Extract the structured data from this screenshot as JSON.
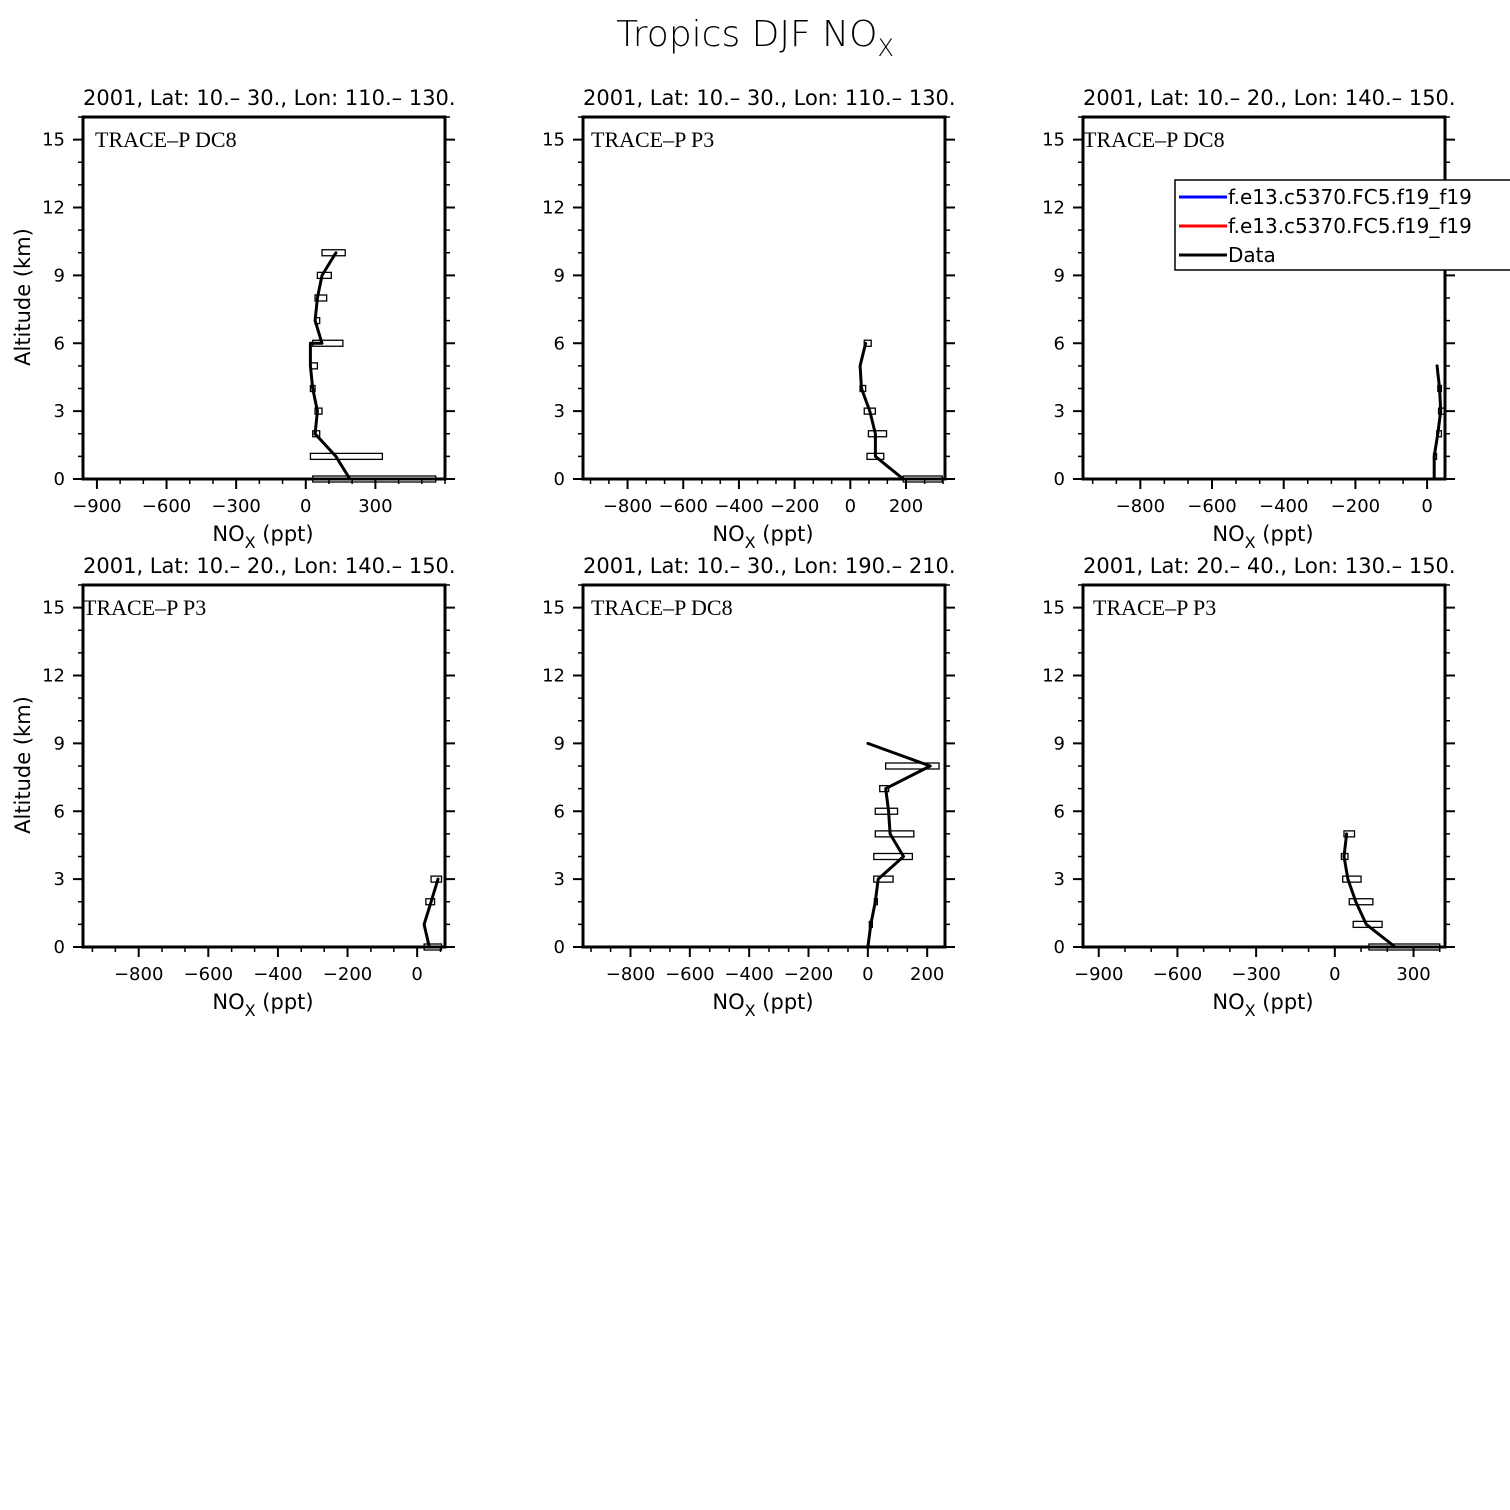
{
  "figure": {
    "title": "Tropics DJF NO",
    "title_sub": "X"
  },
  "legend": {
    "entries": [
      {
        "label": "f.e13.c5370.FC5.f19_f19",
        "color": "#0000ff"
      },
      {
        "label": "f.e13.c5370.FC5.f19_f19",
        "color": "#ff0000"
      },
      {
        "label": "Data",
        "color": "#000000"
      }
    ]
  },
  "chart_data": [
    {
      "type": "line",
      "title": "2001, Lat: 10.– 30., Lon: 110.– 130.",
      "campaign": "TRACE–P DC8",
      "xlabel": "NO",
      "xlabel_sub": "X",
      "xlabel_unit": " (ppt)",
      "ylabel": "Altitude (km)",
      "xlim": [
        -960,
        600
      ],
      "ylim": [
        0,
        16
      ],
      "xticks": [
        -900,
        -600,
        -300,
        0,
        300
      ],
      "yticks": [
        0,
        3,
        6,
        9,
        12,
        15
      ],
      "series": [
        {
          "color": "#000000",
          "x": [
            190,
            130,
            40,
            50,
            30,
            20,
            20,
            70,
            40,
            50,
            70,
            130
          ],
          "y": [
            0,
            1,
            2,
            3,
            4,
            5,
            6,
            6,
            7,
            8,
            9,
            10
          ]
        }
      ],
      "boxes": [
        {
          "y": 0,
          "lo": 30,
          "hi": 560
        },
        {
          "y": 1,
          "lo": 20,
          "hi": 330
        },
        {
          "y": 2,
          "lo": 30,
          "hi": 60
        },
        {
          "y": 3,
          "lo": 40,
          "hi": 70
        },
        {
          "y": 4,
          "lo": 20,
          "hi": 40
        },
        {
          "y": 5,
          "lo": 20,
          "hi": 50
        },
        {
          "y": 6,
          "lo": 30,
          "hi": 160
        },
        {
          "y": 7,
          "lo": 40,
          "hi": 60
        },
        {
          "y": 8,
          "lo": 40,
          "hi": 90
        },
        {
          "y": 9,
          "lo": 50,
          "hi": 110
        },
        {
          "y": 10,
          "lo": 70,
          "hi": 170
        }
      ]
    },
    {
      "type": "line",
      "title": "2001, Lat: 10.– 30., Lon: 110.– 130.",
      "campaign": "TRACE–P P3",
      "xlabel": "NO",
      "xlabel_sub": "X",
      "xlabel_unit": " (ppt)",
      "ylabel": "",
      "xlim": [
        -960,
        340
      ],
      "ylim": [
        0,
        16
      ],
      "xticks": [
        -800,
        -600,
        -400,
        -200,
        0,
        200
      ],
      "yticks": [
        0,
        3,
        6,
        9,
        12,
        15
      ],
      "series": [
        {
          "color": "#000000",
          "x": [
            190,
            90,
            90,
            70,
            40,
            35,
            55
          ],
          "y": [
            0,
            1,
            2,
            3,
            4,
            5,
            6
          ]
        }
      ],
      "boxes": [
        {
          "y": 0,
          "lo": 190,
          "hi": 330
        },
        {
          "y": 1,
          "lo": 60,
          "hi": 120
        },
        {
          "y": 2,
          "lo": 65,
          "hi": 130
        },
        {
          "y": 3,
          "lo": 50,
          "hi": 90
        },
        {
          "y": 4,
          "lo": 35,
          "hi": 55
        },
        {
          "y": 6,
          "lo": 50,
          "hi": 75
        }
      ]
    },
    {
      "type": "line",
      "title": "2001, Lat: 10.– 20., Lon: 140.– 150.",
      "campaign": "TRACE–P DC8",
      "xlabel": "NO",
      "xlabel_sub": "X",
      "xlabel_unit": " (ppt)",
      "ylabel": "",
      "xlim": [
        -960,
        50
      ],
      "ylim": [
        0,
        16
      ],
      "xticks": [
        -800,
        -600,
        -400,
        -200,
        0
      ],
      "yticks": [
        0,
        3,
        6,
        9,
        12,
        15
      ],
      "series": [
        {
          "color": "#000000",
          "x": [
            20,
            20,
            30,
            38,
            35,
            30,
            28
          ],
          "y": [
            0,
            1,
            2,
            3,
            4,
            4.7,
            5
          ]
        }
      ],
      "boxes": [
        {
          "y": 1,
          "lo": 18,
          "hi": 25
        },
        {
          "y": 2,
          "lo": 27,
          "hi": 40
        },
        {
          "y": 3,
          "lo": 32,
          "hi": 48
        },
        {
          "y": 4,
          "lo": 30,
          "hi": 40
        }
      ],
      "legend": true
    },
    {
      "type": "line",
      "title": "2001, Lat: 10.– 20., Lon: 140.– 150.",
      "campaign": "TRACE–P P3",
      "xlabel": "NO",
      "xlabel_sub": "X",
      "xlabel_unit": " (ppt)",
      "ylabel": "Altitude (km)",
      "xlim": [
        -960,
        80
      ],
      "ylim": [
        0,
        16
      ],
      "xticks": [
        -800,
        -600,
        -400,
        -200,
        0
      ],
      "yticks": [
        0,
        3,
        6,
        9,
        12,
        15
      ],
      "series": [
        {
          "color": "#000000",
          "x": [
            35,
            20,
            40,
            60
          ],
          "y": [
            0,
            1,
            2,
            3
          ]
        }
      ],
      "boxes": [
        {
          "y": 0,
          "lo": 20,
          "hi": 70
        },
        {
          "y": 2,
          "lo": 25,
          "hi": 50
        },
        {
          "y": 3,
          "lo": 40,
          "hi": 70
        }
      ]
    },
    {
      "type": "line",
      "title": "2001, Lat: 10.– 30., Lon: 190.– 210.",
      "campaign": "TRACE–P DC8",
      "xlabel": "NO",
      "xlabel_sub": "X",
      "xlabel_unit": " (ppt)",
      "ylabel": "",
      "xlim": [
        -960,
        260
      ],
      "ylim": [
        0,
        16
      ],
      "xticks": [
        -800,
        -600,
        -400,
        -200,
        0,
        200
      ],
      "yticks": [
        0,
        3,
        6,
        9,
        12,
        15
      ],
      "series": [
        {
          "color": "#000000",
          "x": [
            0,
            10,
            25,
            35,
            120,
            75,
            70,
            60,
            210,
            0
          ],
          "y": [
            0,
            1,
            2,
            3,
            4,
            5,
            6,
            7,
            8,
            9
          ]
        }
      ],
      "boxes": [
        {
          "y": 1,
          "lo": 5,
          "hi": 15
        },
        {
          "y": 2,
          "lo": 22,
          "hi": 30
        },
        {
          "y": 3,
          "lo": 20,
          "hi": 85
        },
        {
          "y": 4,
          "lo": 20,
          "hi": 150
        },
        {
          "y": 5,
          "lo": 25,
          "hi": 155
        },
        {
          "y": 6,
          "lo": 25,
          "hi": 100
        },
        {
          "y": 7,
          "lo": 40,
          "hi": 70
        },
        {
          "y": 8,
          "lo": 60,
          "hi": 240
        }
      ]
    },
    {
      "type": "line",
      "title": "2001, Lat: 20.– 40., Lon: 130.– 150.",
      "campaign": "TRACE–P P3",
      "xlabel": "NO",
      "xlabel_sub": "X",
      "xlabel_unit": " (ppt)",
      "ylabel": "",
      "xlim": [
        -960,
        420
      ],
      "ylim": [
        0,
        16
      ],
      "xticks": [
        -900,
        -600,
        -300,
        0,
        300
      ],
      "yticks": [
        0,
        3,
        6,
        9,
        12,
        15
      ],
      "series": [
        {
          "color": "#000000",
          "x": [
            230,
            120,
            80,
            50,
            35,
            45
          ],
          "y": [
            0,
            1,
            2,
            3,
            4,
            5
          ]
        }
      ],
      "boxes": [
        {
          "y": 0,
          "lo": 130,
          "hi": 400
        },
        {
          "y": 1,
          "lo": 70,
          "hi": 180
        },
        {
          "y": 2,
          "lo": 55,
          "hi": 145
        },
        {
          "y": 3,
          "lo": 30,
          "hi": 100
        },
        {
          "y": 4,
          "lo": 25,
          "hi": 50
        },
        {
          "y": 5,
          "lo": 35,
          "hi": 75
        }
      ]
    }
  ]
}
